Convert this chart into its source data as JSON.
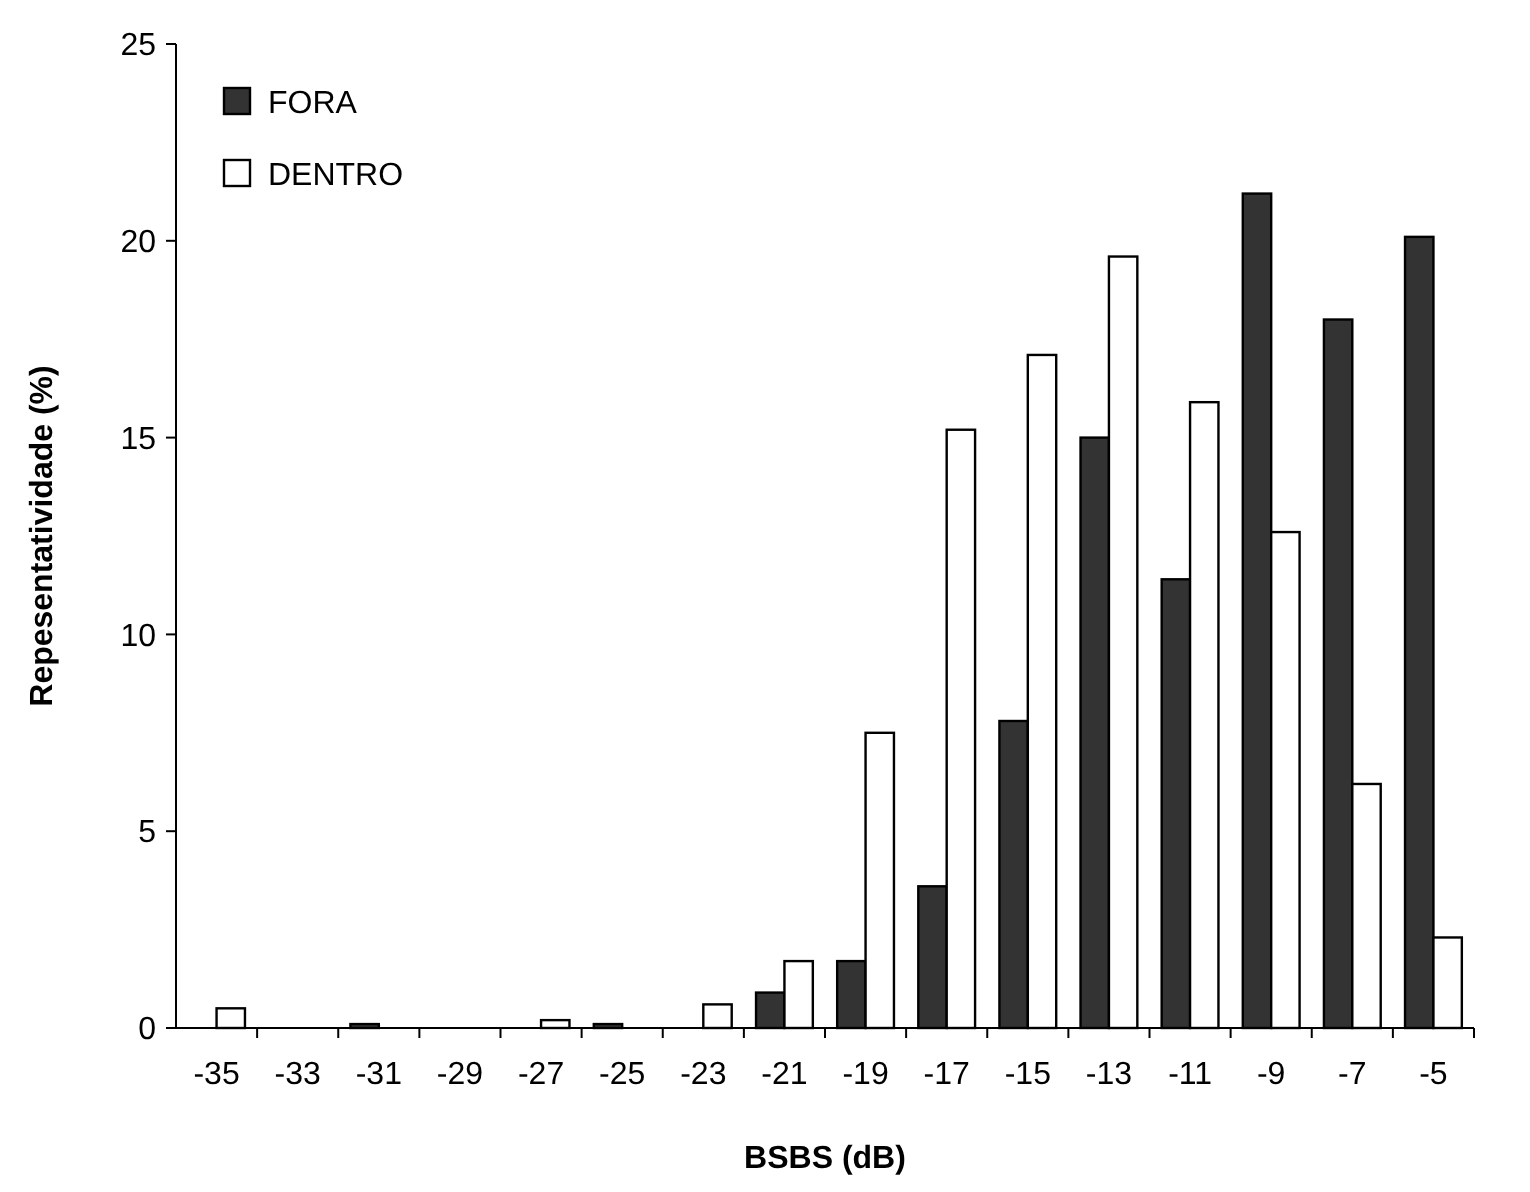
{
  "chart_data": {
    "type": "bar",
    "xlabel": "BSBS (dB)",
    "ylabel": "Repesentatividade (%)",
    "categories": [
      "-35",
      "-33",
      "-31",
      "-29",
      "-27",
      "-25",
      "-23",
      "-21",
      "-19",
      "-17",
      "-15",
      "-13",
      "-11",
      "-9",
      "-7",
      "-5"
    ],
    "series": [
      {
        "name": "FORA",
        "color": "#333333",
        "values": [
          0,
          0,
          0.1,
          0,
          0,
          0.1,
          0,
          0.9,
          1.7,
          3.6,
          7.8,
          15.0,
          11.4,
          21.2,
          18.0,
          20.1
        ]
      },
      {
        "name": "DENTRO",
        "color": "#ffffff",
        "values": [
          0.5,
          0,
          0,
          0,
          0.2,
          0,
          0.6,
          1.7,
          7.5,
          15.2,
          17.1,
          19.6,
          15.9,
          12.6,
          6.2,
          2.3
        ]
      }
    ],
    "ylim": [
      0,
      25
    ],
    "yticks": [
      0,
      5,
      10,
      15,
      20,
      25
    ],
    "legend": "top left",
    "grid": false
  }
}
